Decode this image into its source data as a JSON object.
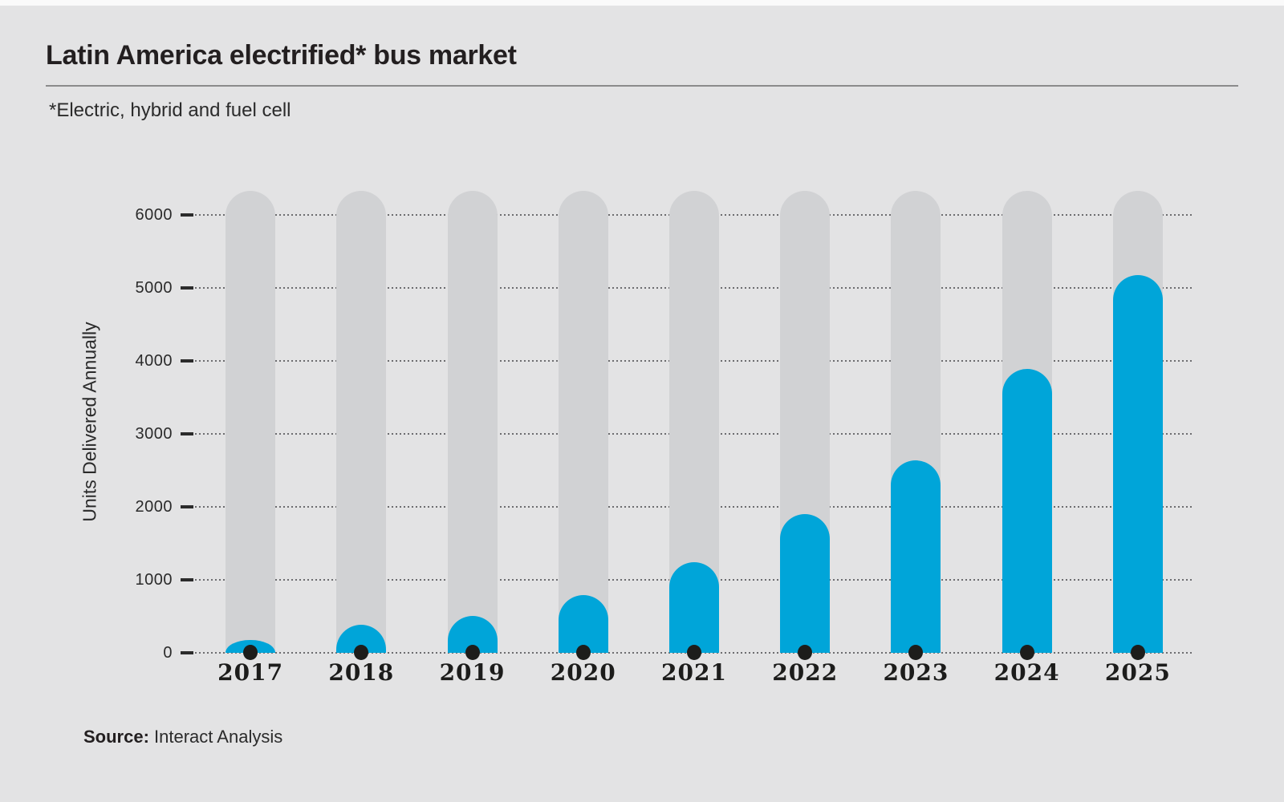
{
  "page": {
    "title": "Latin America electrified* bus market",
    "subtitle": "*Electric, hybrid and fuel cell",
    "source_label": "Source:",
    "source_text": " Interact Analysis"
  },
  "chart_data": {
    "type": "bar",
    "title": "Latin America electrified* bus market",
    "subtitle": "*Electric, hybrid and fuel cell",
    "categories": [
      "2017",
      "2018",
      "2019",
      "2020",
      "2021",
      "2022",
      "2023",
      "2024",
      "2025"
    ],
    "values": [
      180,
      390,
      510,
      790,
      1240,
      1900,
      2640,
      3890,
      5180
    ],
    "xlabel": "",
    "ylabel": "Units Delivered Annually",
    "ylim": [
      0,
      6000
    ],
    "yticks": [
      0,
      1000,
      2000,
      3000,
      4000,
      5000,
      6000
    ],
    "grid": "horizontal-dotted",
    "legend": "none",
    "annotations": "gray full-height rounded track behind each bar; black dot at base of each bar",
    "colors": {
      "bar": "#00a5d9",
      "track": "#d1d2d4",
      "background": "#e3e3e4",
      "dot": "#1d1d1b",
      "text": "#231f20"
    },
    "source": "Source: Interact Analysis"
  }
}
